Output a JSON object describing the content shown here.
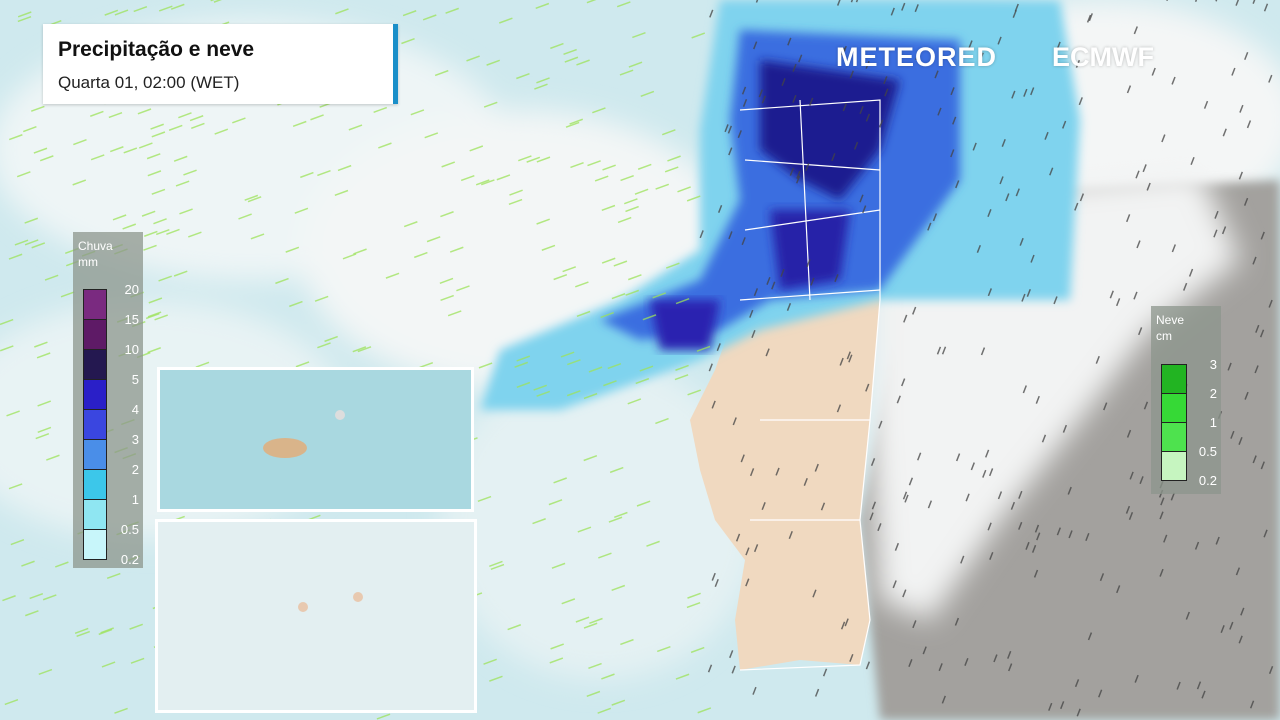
{
  "header": {
    "title": "Precipitação e neve",
    "subtitle": "Quarta 01, 02:00 (WET)",
    "accent": "#1a8fc9"
  },
  "logos": {
    "brand": "METEORED",
    "partner": "ECMWF"
  },
  "rain_legend": {
    "title": "Chuva",
    "unit": "mm",
    "levels": [
      {
        "label": "20",
        "color": "#7a2a80"
      },
      {
        "label": "15",
        "color": "#5e1a66"
      },
      {
        "label": "10",
        "color": "#241850"
      },
      {
        "label": "5",
        "color": "#2a1fc8"
      },
      {
        "label": "4",
        "color": "#3a46e0"
      },
      {
        "label": "3",
        "color": "#4a8ee8"
      },
      {
        "label": "2",
        "color": "#3cc7ea"
      },
      {
        "label": "1",
        "color": "#8fe6f2"
      },
      {
        "label": "0.5",
        "color": "#c8f6fa"
      },
      {
        "label": "0.2",
        "color": ""
      }
    ]
  },
  "snow_legend": {
    "title": "Neve",
    "unit": "cm",
    "levels": [
      {
        "label": "3",
        "color": "#22b422"
      },
      {
        "label": "2",
        "color": "#36d936"
      },
      {
        "label": "1",
        "color": "#4ee24e"
      },
      {
        "label": "0.5",
        "color": "#c6f5c0"
      },
      {
        "label": "0.2",
        "color": ""
      }
    ]
  },
  "colors": {
    "sea": "#cfe9ee",
    "land_portugal": "#f0d9c0",
    "land_spain": "#9c9a97",
    "cloud": "#f2f5f5"
  },
  "insets": [
    {
      "name": "madeira"
    },
    {
      "name": "azores"
    }
  ]
}
